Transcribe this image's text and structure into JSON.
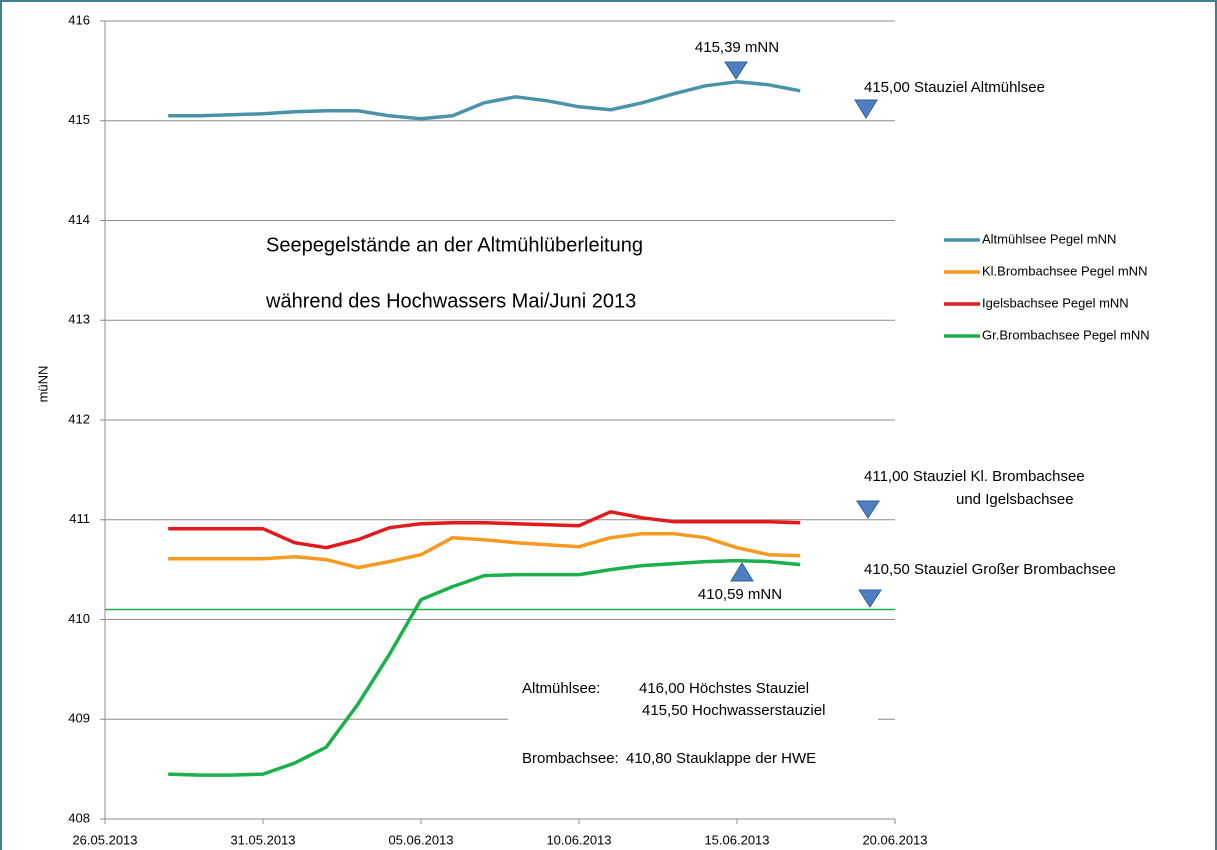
{
  "chart_data": {
    "type": "line",
    "title_lines": [
      "Seepegelstände an der Altmühlüberleitung",
      "während des Hochwassers Mai/Juni 2013"
    ],
    "y_label": "müNN",
    "x": [
      "2013-05-28",
      "2013-05-29",
      "2013-05-30",
      "2013-05-31",
      "2013-06-01",
      "2013-06-02",
      "2013-06-03",
      "2013-06-04",
      "2013-06-05",
      "2013-06-06",
      "2013-06-07",
      "2013-06-08",
      "2013-06-09",
      "2013-06-10",
      "2013-06-11",
      "2013-06-12",
      "2013-06-13",
      "2013-06-14",
      "2013-06-15",
      "2013-06-16",
      "2013-06-17"
    ],
    "xlim": [
      "2013-05-26",
      "2013-06-20"
    ],
    "xticks": [
      {
        "value": "2013-05-26",
        "label": "26.05.2013"
      },
      {
        "value": "2013-05-31",
        "label": "31.05.2013"
      },
      {
        "value": "2013-06-05",
        "label": "05.06.2013"
      },
      {
        "value": "2013-06-10",
        "label": "10.06.2013"
      },
      {
        "value": "2013-06-15",
        "label": "15.06.2013"
      },
      {
        "value": "2013-06-20",
        "label": "20.06.2013"
      }
    ],
    "ylim": [
      408,
      416
    ],
    "yticks": [
      408,
      409,
      410,
      411,
      412,
      413,
      414,
      415,
      416
    ],
    "grid": true,
    "series": [
      {
        "name": "Altmühlsee Pegel mNN",
        "color": "#4a92a8",
        "values": [
          415.05,
          415.05,
          415.06,
          415.07,
          415.09,
          415.1,
          415.1,
          415.05,
          415.02,
          415.05,
          415.18,
          415.24,
          415.2,
          415.14,
          415.11,
          415.18,
          415.27,
          415.35,
          415.39,
          415.36,
          415.3
        ]
      },
      {
        "name": "Kl.Brombachsee Pegel mNN",
        "color": "#f59a1e",
        "values": [
          410.61,
          410.61,
          410.61,
          410.61,
          410.63,
          410.6,
          410.52,
          410.58,
          410.65,
          410.82,
          410.8,
          410.77,
          410.75,
          410.73,
          410.82,
          410.86,
          410.86,
          410.82,
          410.72,
          410.65,
          410.64
        ]
      },
      {
        "name": "Igelsbachsee Pegel mNN",
        "color": "#e31a1c",
        "values": [
          410.91,
          410.91,
          410.91,
          410.91,
          410.77,
          410.72,
          410.8,
          410.92,
          410.96,
          410.97,
          410.97,
          410.96,
          410.95,
          410.94,
          411.08,
          411.02,
          410.98,
          410.98,
          410.98,
          410.98,
          410.97
        ]
      },
      {
        "name": "Gr.Brombachsee Pegel mNN",
        "color": "#1ab04c",
        "values": [
          408.45,
          408.44,
          408.44,
          408.45,
          408.56,
          408.72,
          409.15,
          409.65,
          410.2,
          410.33,
          410.44,
          410.45,
          410.45,
          410.45,
          410.5,
          410.54,
          410.56,
          410.58,
          410.59,
          410.58,
          410.55
        ]
      }
    ],
    "reference_line": {
      "value": 410.1,
      "color": "#1ab04c"
    },
    "annotations": [
      "415,39 mNN",
      "415,00 Stauziel Altmühlsee",
      "411,00 Stauziel Kl. Brombachsee",
      "und Igelsbachsee",
      "410,50 Stauziel Großer Brombachsee",
      "410,59 mNN"
    ],
    "note": [
      "Altmühlsee:",
      "416,00 Höchstes Stauziel",
      "415,50 Hochwasserstauziel",
      "Brombachsee:",
      "410,80 Stauklappe der HWE"
    ]
  }
}
